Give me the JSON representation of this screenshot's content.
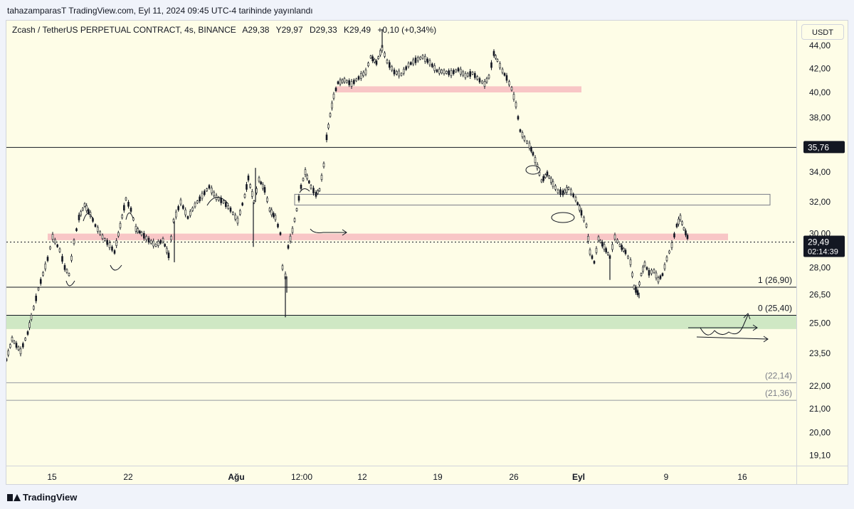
{
  "header": {
    "publish_line": "tahazamparasT TradingView.com, Eyl 11, 2024 09:45 UTC-4 tarihinde yayınlandı"
  },
  "legend": {
    "symbol": "Zcash / TetherUS PERPETUAL CONTRACT, 4s, BINANCE",
    "open": "A29,38",
    "high": "Y29,97",
    "low": "D29,33",
    "close": "K29,49",
    "change": "+0,10 (+0,34%)"
  },
  "currency_button": "USDT",
  "footer": {
    "brand": "TradingView"
  },
  "chart_data": {
    "type": "line",
    "style": "candlestick",
    "ylim": [
      18.7,
      46.3
    ],
    "y_scale": "log",
    "y_ticks": [
      {
        "value": 44.0,
        "label": "44,00"
      },
      {
        "value": 42.0,
        "label": "42,00"
      },
      {
        "value": 40.0,
        "label": "40,00"
      },
      {
        "value": 38.0,
        "label": "38,00"
      },
      {
        "value": 34.0,
        "label": "34,00"
      },
      {
        "value": 32.0,
        "label": "32,00"
      },
      {
        "value": 30.0,
        "label": "30,00"
      },
      {
        "value": 28.0,
        "label": "28,00"
      },
      {
        "value": 26.5,
        "label": "26,50"
      },
      {
        "value": 25.0,
        "label": "25,00"
      },
      {
        "value": 23.5,
        "label": "23,50"
      },
      {
        "value": 22.0,
        "label": "22,00"
      },
      {
        "value": 21.0,
        "label": "21,00"
      },
      {
        "value": 20.0,
        "label": "20,00"
      },
      {
        "value": 19.1,
        "label": "19,10"
      }
    ],
    "x_ticks": [
      {
        "label": "15",
        "bold": false
      },
      {
        "label": "22",
        "bold": false
      },
      {
        "label": "Ağu",
        "bold": true
      },
      {
        "label": "12:00",
        "bold": false
      },
      {
        "label": "12",
        "bold": false
      },
      {
        "label": "19",
        "bold": false
      },
      {
        "label": "26",
        "bold": false
      },
      {
        "label": "Eyl",
        "bold": true
      },
      {
        "label": "9",
        "bold": false
      },
      {
        "label": "16",
        "bold": false
      }
    ],
    "price_path": [
      [
        0,
        23.2
      ],
      [
        8,
        24.2
      ],
      [
        20,
        23.6
      ],
      [
        30,
        24.5
      ],
      [
        35,
        25.3
      ],
      [
        45,
        26.8
      ],
      [
        58,
        28.5
      ],
      [
        65,
        29.8
      ],
      [
        75,
        29.0
      ],
      [
        82,
        28.0
      ],
      [
        88,
        27.6
      ],
      [
        95,
        29.5
      ],
      [
        102,
        31.0
      ],
      [
        110,
        31.8
      ],
      [
        118,
        31.2
      ],
      [
        125,
        30.5
      ],
      [
        135,
        29.8
      ],
      [
        145,
        29.3
      ],
      [
        152,
        28.9
      ],
      [
        160,
        30.5
      ],
      [
        168,
        32.2
      ],
      [
        175,
        31.5
      ],
      [
        182,
        30.3
      ],
      [
        190,
        30.0
      ],
      [
        200,
        29.6
      ],
      [
        210,
        29.3
      ],
      [
        220,
        29.6
      ],
      [
        228,
        28.7
      ],
      [
        235,
        30.8
      ],
      [
        245,
        32.0
      ],
      [
        255,
        31.0
      ],
      [
        265,
        31.8
      ],
      [
        275,
        32.4
      ],
      [
        285,
        33.0
      ],
      [
        295,
        32.3
      ],
      [
        305,
        32.0
      ],
      [
        315,
        31.5
      ],
      [
        325,
        30.8
      ],
      [
        335,
        32.4
      ],
      [
        340,
        33.6
      ],
      [
        348,
        32.0
      ],
      [
        355,
        33.5
      ],
      [
        363,
        32.8
      ],
      [
        370,
        31.5
      ],
      [
        378,
        31.0
      ],
      [
        385,
        30.0
      ],
      [
        388,
        28.0
      ],
      [
        392,
        27.5
      ],
      [
        396,
        29.2
      ],
      [
        402,
        30.2
      ],
      [
        408,
        31.5
      ],
      [
        414,
        33.0
      ],
      [
        420,
        34.0
      ],
      [
        428,
        33.0
      ],
      [
        435,
        32.5
      ],
      [
        440,
        32.8
      ],
      [
        446,
        34.5
      ],
      [
        450,
        36.5
      ],
      [
        455,
        38.2
      ],
      [
        460,
        39.7
      ],
      [
        466,
        40.8
      ],
      [
        475,
        41.0
      ],
      [
        485,
        40.7
      ],
      [
        495,
        41.2
      ],
      [
        505,
        41.7
      ],
      [
        512,
        43.0
      ],
      [
        520,
        42.5
      ],
      [
        528,
        43.8
      ],
      [
        535,
        42.6
      ],
      [
        545,
        41.7
      ],
      [
        555,
        41.5
      ],
      [
        565,
        42.3
      ],
      [
        575,
        42.7
      ],
      [
        585,
        43.0
      ],
      [
        595,
        42.5
      ],
      [
        605,
        41.8
      ],
      [
        615,
        41.7
      ],
      [
        625,
        41.6
      ],
      [
        635,
        41.9
      ],
      [
        645,
        41.4
      ],
      [
        655,
        41.6
      ],
      [
        665,
        41.0
      ],
      [
        672,
        40.7
      ],
      [
        678,
        41.3
      ],
      [
        685,
        43.3
      ],
      [
        690,
        42.7
      ],
      [
        697,
        41.8
      ],
      [
        703,
        41.2
      ],
      [
        710,
        40.3
      ],
      [
        716,
        39.0
      ],
      [
        722,
        37.0
      ],
      [
        728,
        36.4
      ],
      [
        735,
        35.9
      ],
      [
        740,
        35.3
      ],
      [
        746,
        34.4
      ],
      [
        752,
        33.4
      ],
      [
        760,
        33.9
      ],
      [
        768,
        33.2
      ],
      [
        775,
        32.7
      ],
      [
        782,
        32.6
      ],
      [
        790,
        32.9
      ],
      [
        800,
        32.2
      ],
      [
        808,
        31.3
      ],
      [
        815,
        30.5
      ],
      [
        820,
        28.9
      ],
      [
        826,
        28.3
      ],
      [
        832,
        29.7
      ],
      [
        840,
        29.2
      ],
      [
        848,
        28.6
      ],
      [
        855,
        29.8
      ],
      [
        862,
        29.3
      ],
      [
        870,
        28.9
      ],
      [
        877,
        28.3
      ],
      [
        882,
        26.9
      ],
      [
        887,
        26.6
      ],
      [
        892,
        27.6
      ],
      [
        897,
        28.2
      ],
      [
        903,
        27.7
      ],
      [
        910,
        27.8
      ],
      [
        916,
        27.3
      ],
      [
        922,
        27.6
      ],
      [
        928,
        28.5
      ],
      [
        935,
        29.3
      ],
      [
        942,
        30.5
      ],
      [
        947,
        31.0
      ],
      [
        952,
        30.3
      ],
      [
        957,
        29.8
      ],
      [
        960,
        29.49
      ]
    ],
    "wicks": [
      {
        "x": 392,
        "low": 25.3
      },
      {
        "x": 394,
        "low": 26.6
      },
      {
        "x": 347,
        "low": 29.2
      },
      {
        "x": 236,
        "low": 28.3
      },
      {
        "x": 848,
        "low": 27.3
      },
      {
        "x": 889,
        "low": 26.3
      },
      {
        "x": 685,
        "high": 43.6
      },
      {
        "x": 528,
        "high": 45.5
      },
      {
        "x": 350,
        "high": 34.3
      }
    ],
    "zones": [
      {
        "name": "zone-pink-top",
        "from": 463,
        "to": 808,
        "y_low": 40.0,
        "y_high": 40.5,
        "color": "#f8c6c6",
        "border": null
      },
      {
        "name": "zone-rect-outline",
        "from": 405,
        "to": 1073,
        "y_low": 31.8,
        "y_high": 32.5,
        "color": "none",
        "border": "#787b86"
      },
      {
        "name": "zone-pink-mid",
        "from": 58,
        "to": 1014,
        "y_low": 29.6,
        "y_high": 30.0,
        "color": "#f8c6c6",
        "border": null
      },
      {
        "name": "zone-green",
        "from": 0,
        "to": 1110,
        "y_low": 24.7,
        "y_high": 25.4,
        "color": "#cfe8c4",
        "border": null
      }
    ],
    "hlines": [
      {
        "name": "line-35-76",
        "y": 35.76,
        "from": 0,
        "to": 1110,
        "color": "#131722",
        "dash": false,
        "label": null
      },
      {
        "name": "line-fib-1",
        "y": 26.9,
        "from": 0,
        "to": 1110,
        "color": "#131722",
        "dash": false,
        "label": "1 (26,90)"
      },
      {
        "name": "line-fib-0",
        "y": 25.4,
        "from": 0,
        "to": 1110,
        "color": "#131722",
        "dash": false,
        "label": "0 (25,40)"
      },
      {
        "name": "line-22-14",
        "y": 22.14,
        "from": 0,
        "to": 1110,
        "color": "#9598a1",
        "dash": false,
        "label": "(22,14)"
      },
      {
        "name": "line-21-36",
        "y": 21.36,
        "from": 0,
        "to": 1110,
        "color": "#9598a1",
        "dash": false,
        "label": "(21,36)"
      },
      {
        "name": "line-last-price",
        "y": 29.49,
        "from": 0,
        "to": 1110,
        "color": "#131722",
        "dash": true,
        "label": null
      }
    ],
    "price_labels": [
      {
        "name": "badge-35-76",
        "y": 35.76,
        "text": "35,76",
        "sub": null
      },
      {
        "name": "badge-last-price",
        "y": 29.49,
        "text": "29,49",
        "sub": "02:14:39"
      }
    ]
  }
}
